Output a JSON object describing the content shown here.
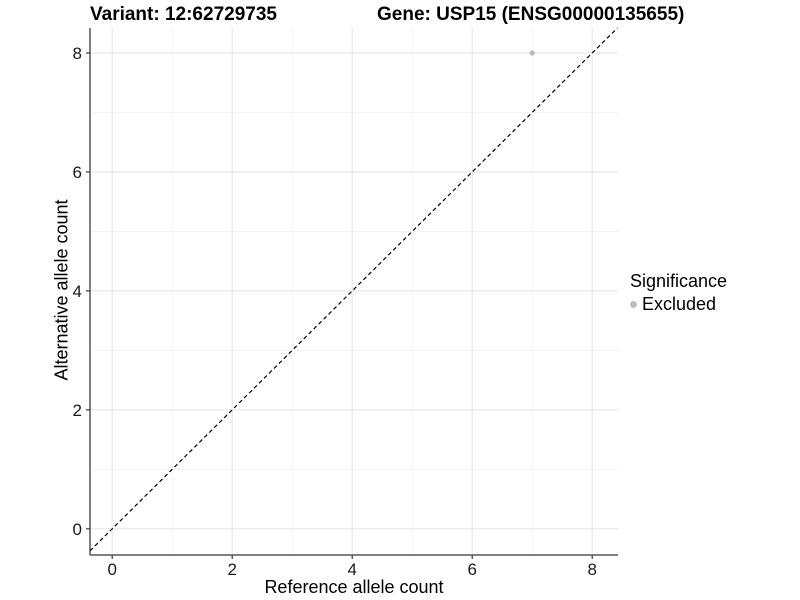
{
  "header": {
    "variant_title": "Variant: 12:62729735",
    "gene_title": "Gene: USP15 (ENSG00000135655)"
  },
  "legend": {
    "title": "Significance",
    "items": [
      {
        "label": "Excluded",
        "color": "#bdbdbd"
      }
    ]
  },
  "chart_data": {
    "type": "scatter",
    "title": "Variant: 12:62729735  /  Gene: USP15 (ENSG00000135655)",
    "xlabel": "Reference allele count",
    "ylabel": "Alternative allele count",
    "xlim": [
      -0.37,
      8.43
    ],
    "ylim": [
      -0.44,
      8.42
    ],
    "xticks": [
      0,
      2,
      4,
      6,
      8
    ],
    "yticks": [
      0,
      2,
      4,
      6,
      8
    ],
    "xticks_minor": [
      1,
      3,
      5,
      7
    ],
    "yticks_minor": [
      1,
      3,
      5,
      7
    ],
    "grid": "major+minor",
    "legend_position": "right",
    "reference_line": {
      "type": "identity y=x",
      "style": "dashed",
      "color": "#000000"
    },
    "series": [
      {
        "name": "Excluded",
        "color": "#bdbdbd",
        "marker": "circle",
        "marker_radius": 2.7,
        "points": [
          [
            7,
            8
          ]
        ]
      }
    ]
  },
  "style": {
    "background": "#ffffff",
    "grid_major_color": "#e3e3e3",
    "grid_minor_color": "#f0f0f0",
    "axis_line_color": "#383838",
    "tick_color": "#383838",
    "tick_label_color": "#1a1a1a",
    "tick_label_size": 17
  }
}
